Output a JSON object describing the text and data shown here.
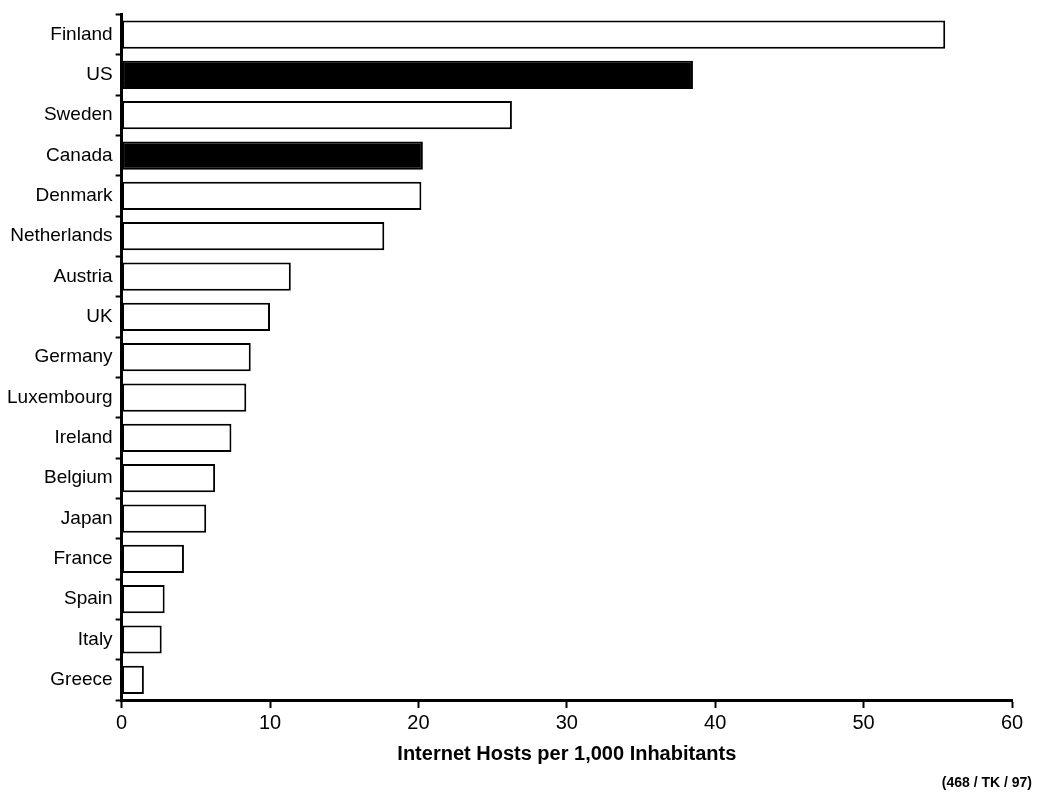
{
  "chart_data": {
    "type": "bar",
    "orientation": "horizontal",
    "xlabel": "Internet Hosts per 1,000 Inhabitants",
    "categories": [
      "Finland",
      "US",
      "Sweden",
      "Canada",
      "Denmark",
      "Netherlands",
      "Austria",
      "UK",
      "Germany",
      "Luxembourg",
      "Ireland",
      "Belgium",
      "Japan",
      "France",
      "Spain",
      "Italy",
      "Greece"
    ],
    "values": [
      55.5,
      38.5,
      26.3,
      20.3,
      20.2,
      17.7,
      11.4,
      10.0,
      8.7,
      8.4,
      7.4,
      6.3,
      5.7,
      4.2,
      2.9,
      2.7,
      1.5
    ],
    "colors": [
      "#ffffff",
      "#000000",
      "#ffffff",
      "#000000",
      "#ffffff",
      "#ffffff",
      "#ffffff",
      "#ffffff",
      "#ffffff",
      "#ffffff",
      "#ffffff",
      "#ffffff",
      "#ffffff",
      "#ffffff",
      "#ffffff",
      "#ffffff",
      "#ffffff"
    ],
    "xlim": [
      0,
      60
    ],
    "xticks": [
      0,
      10,
      20,
      30,
      40,
      50,
      60
    ],
    "grid": false,
    "legend": false,
    "annotations": [
      "(468 / TK / 97)"
    ]
  }
}
